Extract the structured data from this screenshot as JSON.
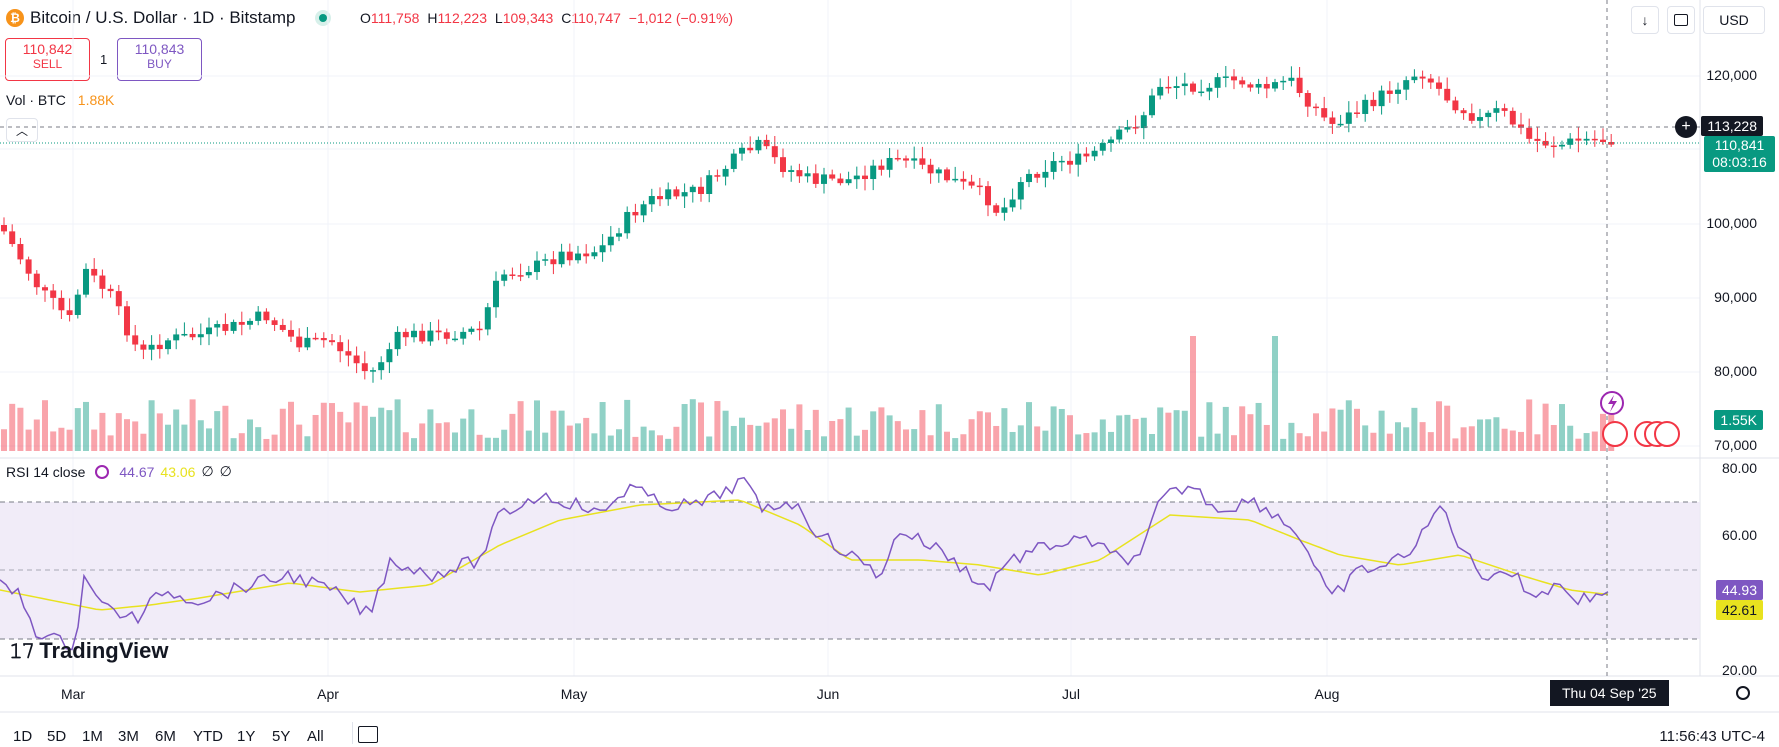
{
  "header": {
    "symbol_title": "Bitcoin / U.S. Dollar · 1D · Bitstamp",
    "ohlc": {
      "o_label": "O",
      "o": "111,758",
      "h_label": "H",
      "h": "112,223",
      "l_label": "L",
      "l": "109,343",
      "c_label": "C",
      "c": "110,747",
      "change": "−1,012 (−0.91%)"
    },
    "sell_price": "110,842",
    "sell_label": "SELL",
    "spread": "1",
    "buy_price": "110,843",
    "buy_label": "BUY",
    "volume_label": "Vol · BTC",
    "volume_value": "1.88K",
    "currency": "USD"
  },
  "price_axis": {
    "ticks": [
      "120,000",
      "100,000",
      "90,000",
      "80,000",
      "70,000"
    ],
    "crosshair_price": "113,228",
    "last_price": "110,841",
    "countdown": "08:03:16",
    "volume_badge": "1.55K"
  },
  "rsi": {
    "label": "RSI 14 close",
    "value1": "44.67",
    "value2": "43.06",
    "na1": "∅",
    "na2": "∅",
    "ticks": [
      "80.00",
      "60.00",
      "20.00"
    ],
    "badge1": "44.93",
    "badge2": "42.61"
  },
  "time_axis": {
    "months": [
      "Mar",
      "Apr",
      "May",
      "Jun",
      "Jul",
      "Aug"
    ],
    "crosshair_date": "Thu 04 Sep '25"
  },
  "bottom_bar": {
    "ranges": [
      "1D",
      "5D",
      "1M",
      "3M",
      "6M",
      "YTD",
      "1Y",
      "5Y",
      "All"
    ],
    "clock": "11:56:43 UTC-4"
  },
  "brand": "TradingView",
  "colors": {
    "up": "#089981",
    "down": "#f23645",
    "rsi": "#7e57c2",
    "rsi_ma": "#e8e21f",
    "band": "#ede7f6"
  }
}
